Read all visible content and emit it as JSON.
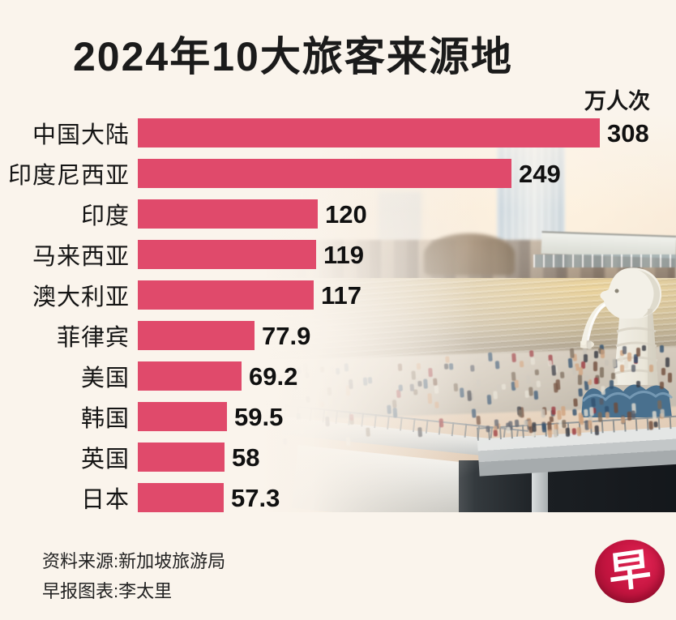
{
  "title": "2024年10大旅客来源地",
  "unit_label": "万人次",
  "chart_data": {
    "type": "bar",
    "orientation": "horizontal",
    "title": "2024年10大旅客来源地",
    "unit": "万人次",
    "categories": [
      "中国大陆",
      "印度尼西亚",
      "印度",
      "马来西亚",
      "澳大利亚",
      "菲律宾",
      "美国",
      "韩国",
      "英国",
      "日本"
    ],
    "values": [
      308,
      249,
      120,
      119,
      117,
      77.9,
      69.2,
      59.5,
      58,
      57.3
    ],
    "value_labels": [
      "308",
      "249",
      "120",
      "119",
      "117",
      "77.9",
      "69.2",
      "59.5",
      "58",
      "57.3"
    ],
    "xlim": [
      0,
      308
    ],
    "grid": false,
    "legend": "none",
    "bar_color": "#e04a6b",
    "value_label_position": "right-of-bar"
  },
  "footer": {
    "source": "资料来源:新加坡旅游局",
    "credit": "早报图表:李太里"
  },
  "logo": {
    "glyph": "早",
    "background": "#c3143f"
  },
  "colors": {
    "background": "#faf4ec",
    "bar": "#e04a6b",
    "text": "#1a1a1a",
    "logo_red": "#c3143f"
  },
  "photo": {
    "name": "merlion-marina-bay-tourists-photo",
    "crowd_palette": [
      "#33363f",
      "#585d68",
      "#7b6a5a",
      "#c9c3b8",
      "#98353b",
      "#31506e",
      "#e3ded2",
      "#6e4b3a",
      "#d0a37e"
    ]
  }
}
